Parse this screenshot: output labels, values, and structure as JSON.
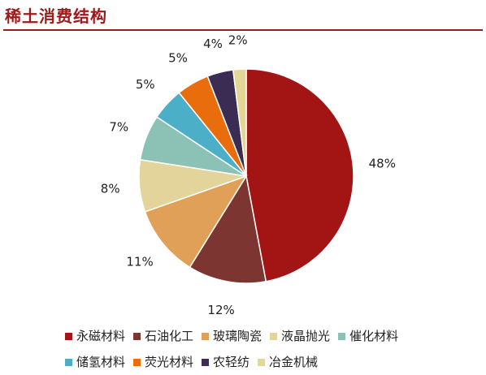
{
  "header": {
    "title": "稀土消费结构"
  },
  "chart_data": {
    "type": "pie",
    "title": "",
    "categories": [
      "永磁材料",
      "石油化工",
      "玻璃陶瓷",
      "液晶抛光",
      "催化材料",
      "储氢材料",
      "荧光材料",
      "农轻纺",
      "冶金机械"
    ],
    "values": [
      48,
      12,
      11,
      8,
      7,
      5,
      5,
      4,
      2
    ],
    "data_labels": [
      "48%",
      "12%",
      "11%",
      "8%",
      "7%",
      "5%",
      "5%",
      "4%",
      "2%"
    ],
    "colors": [
      "#a31515",
      "#7d3531",
      "#e0a057",
      "#e2d49b",
      "#8cc2b5",
      "#4bafc8",
      "#e96d0c",
      "#3a2c52",
      "#e3d796"
    ],
    "start": "12 o'clock",
    "direction": "clockwise",
    "legend_position": "bottom"
  }
}
